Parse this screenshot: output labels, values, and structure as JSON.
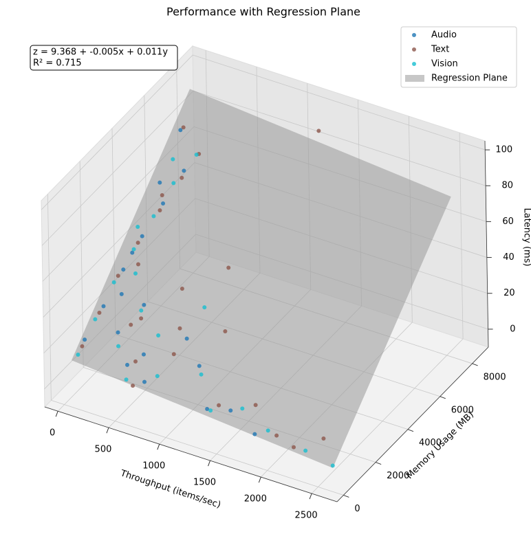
{
  "chart_data": {
    "type": "scatter3d",
    "title": "Performance with Regression Plane",
    "x_label": "Throughput (items/sec)",
    "y_label": "Memory Usage (MB)",
    "z_label": "Latency (ms)",
    "xlim": [
      -130,
      2750
    ],
    "ylim": [
      -400,
      9000
    ],
    "zlim": [
      -10,
      105
    ],
    "xticks": [
      0,
      500,
      1000,
      1500,
      2000,
      2500
    ],
    "yticks": [
      0,
      2000,
      4000,
      6000,
      8000
    ],
    "zticks": [
      0,
      20,
      40,
      60,
      80,
      100
    ],
    "grid": true,
    "legend": "upper right",
    "annotation": [
      "z = 9.368 + -0.005x + 0.011y",
      "R² = 0.715"
    ],
    "regression": {
      "name": "Regression Plane",
      "color": "#999999",
      "intercept": 9.368,
      "coef_x": -0.005,
      "coef_y": 0.011
    },
    "series": [
      {
        "name": "Audio",
        "color": "#1f77b4",
        "x": [
          50,
          80,
          120,
          150,
          200,
          250,
          300,
          400,
          500,
          600,
          700,
          900,
          1100,
          1300,
          1500,
          1800,
          60,
          90,
          130,
          180
        ],
        "y": [
          1000,
          2000,
          3000,
          4000,
          5000,
          6000,
          1500,
          2500,
          800,
          1200,
          600,
          2000,
          1500,
          700,
          900,
          500,
          7000,
          5500,
          3500,
          2500
        ],
        "z": [
          18,
          28,
          40,
          50,
          60,
          70,
          22,
          30,
          14,
          18,
          10,
          25,
          18,
          5,
          6,
          2,
          80,
          65,
          45,
          32
        ]
      },
      {
        "name": "Text",
        "color": "#8c564b",
        "x": [
          40,
          70,
          100,
          140,
          200,
          260,
          320,
          450,
          550,
          700,
          850,
          1000,
          1200,
          1400,
          1700,
          2000,
          2200,
          2400,
          1300,
          90,
          160,
          220,
          380,
          600,
          800
        ],
        "y": [
          900,
          1800,
          2800,
          3800,
          4800,
          5800,
          6500,
          2000,
          1000,
          3000,
          1500,
          4000,
          2500,
          800,
          1200,
          600,
          400,
          1000,
          7800,
          7000,
          5200,
          3300,
          1800,
          500,
          2200
        ],
        "z": [
          15,
          26,
          38,
          48,
          58,
          68,
          76,
          28,
          15,
          40,
          20,
          48,
          30,
          8,
          10,
          4,
          3,
          6,
          95,
          82,
          62,
          42,
          25,
          7,
          27
        ]
      },
      {
        "name": "Vision",
        "color": "#17becf",
        "x": [
          30,
          60,
          90,
          130,
          170,
          210,
          280,
          350,
          420,
          520,
          650,
          780,
          950,
          1150,
          1350,
          1600,
          1900,
          2300,
          2600,
          75,
          110,
          240
        ],
        "y": [
          700,
          1600,
          2600,
          3600,
          4600,
          5600,
          6600,
          1200,
          2200,
          600,
          1800,
          900,
          2800,
          1300,
          600,
          1000,
          700,
          500,
          300,
          4200,
          6200,
          3000
        ],
        "z": [
          12,
          24,
          36,
          46,
          56,
          66,
          74,
          18,
          30,
          8,
          24,
          12,
          36,
          16,
          6,
          8,
          4,
          2,
          1,
          52,
          72,
          40
        ]
      }
    ]
  }
}
